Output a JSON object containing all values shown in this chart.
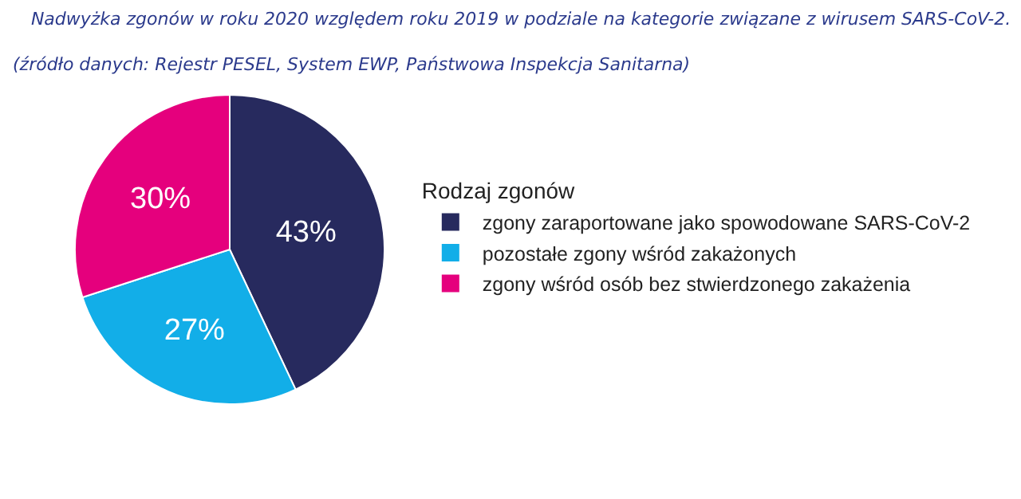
{
  "chart_data": {
    "type": "pie",
    "title": "Nadwyżka zgonów w roku 2020 względem roku 2019 w podziale na kategorie związane z wirusem SARS-CoV-2.",
    "annotations": [
      "(źródło danych: Rejestr PESEL, System EWP, Państwowa Inspekcja Sanitarna)"
    ],
    "legend_title": "Rodzaj zgonów",
    "categories": [
      "zgony zaraportowane jako spowodowane SARS-CoV-2",
      "pozostałe zgony wśród zakażonych",
      "zgony wśród osób bez stwierdzonego zakażenia"
    ],
    "values": [
      43,
      27,
      30
    ],
    "value_labels": [
      "43%",
      "27%",
      "30%"
    ],
    "colors": [
      "#272a5e",
      "#12aee8",
      "#e5007d"
    ],
    "legend": "right"
  }
}
